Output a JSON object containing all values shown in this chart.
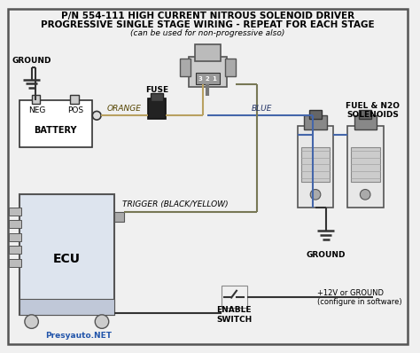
{
  "title_line1": "P/N 554-111 HIGH CURRENT NITROUS SOLENOID DRIVER",
  "title_line2": "PROGRESSIVE SINGLE STAGE WIRING - REPEAT FOR EACH STAGE",
  "title_line3": "(can be used for non-progressive also)",
  "bg_color": "#f0f0f0",
  "border_color": "#333333",
  "wire_color_orange": "#b8a060",
  "wire_color_blue": "#4466aa",
  "wire_color_dark": "#333333",
  "wire_color_trigger": "#777755",
  "label_ground_top": "GROUND",
  "label_battery_neg": "NEG",
  "label_battery_pos": "POS",
  "label_battery": "BATTERY",
  "label_fuse": "FUSE",
  "label_orange": "ORANGE",
  "label_blue": "BLUE",
  "label_fuel_n2o": "FUEL & N2O\nSOLENOIDS",
  "label_ground_right": "GROUND",
  "label_trigger": "TRIGGER (BLACK/YELLOW)",
  "label_ecu": "ECU",
  "label_enable": "ENABLE\nSWITCH",
  "label_12v": "+12V or GROUND\n(configure in software)",
  "watermark": "Presyauto.NET"
}
